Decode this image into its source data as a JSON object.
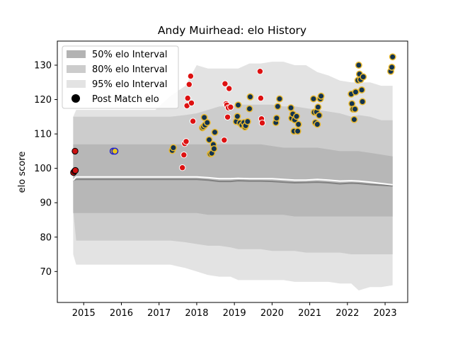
{
  "chart_data": {
    "type": "scatter",
    "title": "Andy Muirhead: elo History",
    "xlabel": "",
    "ylabel": "elo score",
    "xlim": [
      2014.3,
      2023.6
    ],
    "ylim": [
      61,
      137
    ],
    "x_ticks": [
      2015,
      2016,
      2017,
      2018,
      2019,
      2020,
      2021,
      2022,
      2023
    ],
    "y_ticks": [
      70,
      80,
      90,
      100,
      110,
      120,
      130
    ],
    "legend": {
      "position": "top-left",
      "entries": [
        "50% elo Interval",
        "80% elo Interval",
        "95% elo Interval",
        "Post Match elo"
      ]
    },
    "colors": {
      "band95": "#e3e3e3",
      "band80": "#cccccc",
      "band50": "#b7b7b7",
      "median_line": "#808080",
      "mean_line": "#ffffff",
      "win_marker": "#dd1111",
      "other_marker": "#123350",
      "other_marker_edge": "#e8b82e",
      "start_marker": "#cc1111",
      "highlight_marker": "#e8c81a",
      "highlight_marker_edge": "#2222cc"
    },
    "bands": {
      "x": [
        2014.72,
        2014.8,
        2015.8,
        2016.9,
        2017.3,
        2017.7,
        2018.0,
        2018.3,
        2018.6,
        2018.9,
        2019.1,
        2019.4,
        2019.7,
        2020.0,
        2020.3,
        2020.6,
        2020.9,
        2021.2,
        2021.5,
        2021.8,
        2022.1,
        2022.3,
        2022.6,
        2022.9,
        2023.2
      ],
      "p95_lo": [
        75.0,
        72.0,
        72.0,
        72.0,
        72.0,
        71.0,
        70.0,
        69.0,
        68.5,
        68.5,
        67.5,
        67.5,
        67.5,
        67.5,
        67.5,
        67.0,
        67.0,
        67.0,
        67.0,
        66.5,
        66.5,
        64.5,
        65.5,
        65.5,
        66.0
      ],
      "p80_lo": [
        88.0,
        79.0,
        79.0,
        79.0,
        79.0,
        78.5,
        78.0,
        77.5,
        77.5,
        77.0,
        76.5,
        76.5,
        76.5,
        76.0,
        76.0,
        76.0,
        75.5,
        75.5,
        75.5,
        75.5,
        75.0,
        75.0,
        75.0,
        75.0,
        75.0
      ],
      "p50_lo": [
        87.0,
        87.0,
        87.0,
        87.0,
        87.0,
        87.0,
        87.0,
        86.5,
        86.5,
        86.5,
        86.5,
        86.5,
        86.5,
        86.5,
        86.5,
        86.0,
        86.0,
        86.0,
        86.0,
        86.0,
        86.0,
        86.0,
        86.0,
        86.0,
        86.0
      ],
      "p50_hi": [
        107.0,
        107.0,
        107.0,
        107.0,
        107.0,
        107.0,
        107.0,
        107.0,
        107.0,
        107.0,
        107.0,
        107.0,
        107.0,
        106.5,
        106.0,
        106.0,
        106.0,
        106.0,
        105.5,
        105.0,
        105.0,
        105.0,
        104.5,
        104.0,
        103.5
      ],
      "p80_hi": [
        115.0,
        115.0,
        115.0,
        115.0,
        115.0,
        115.5,
        116.0,
        117.0,
        118.0,
        118.0,
        118.5,
        118.5,
        118.5,
        118.5,
        118.0,
        118.0,
        117.5,
        117.0,
        116.5,
        116.0,
        115.0,
        115.5,
        115.0,
        114.0,
        114.0
      ],
      "p95_hi": [
        115.0,
        117.0,
        117.0,
        117.0,
        121.0,
        124.0,
        130.0,
        129.0,
        129.0,
        129.0,
        129.0,
        130.5,
        130.5,
        131.0,
        131.0,
        130.0,
        130.0,
        128.0,
        127.0,
        125.5,
        125.0,
        125.0,
        125.0,
        124.0,
        124.0
      ],
      "median": [
        96.5,
        96.8,
        96.8,
        96.8,
        96.8,
        96.8,
        96.8,
        96.6,
        96.2,
        96.2,
        96.4,
        96.3,
        96.3,
        96.2,
        96.0,
        95.8,
        95.9,
        96.0,
        95.8,
        95.5,
        95.7,
        95.6,
        95.3,
        95.1,
        94.9
      ],
      "mean": [
        96.5,
        97.5,
        97.5,
        97.5,
        97.5,
        97.5,
        97.5,
        97.3,
        97.0,
        97.0,
        97.1,
        97.0,
        97.0,
        97.0,
        96.8,
        96.6,
        96.6,
        96.8,
        96.6,
        96.3,
        96.4,
        96.3,
        96.0,
        95.6,
        95.2
      ]
    },
    "series": [
      {
        "name": "Post Match elo",
        "style": "start",
        "points": [
          [
            2014.73,
            98.8
          ],
          [
            2014.76,
            99.2
          ],
          [
            2014.78,
            99.4
          ],
          [
            2014.77,
            105.0
          ]
        ]
      },
      {
        "style": "highlight",
        "points": [
          [
            2015.78,
            105.0
          ],
          [
            2015.83,
            105.0
          ]
        ]
      },
      {
        "style": "win",
        "points": [
          [
            2017.62,
            100.2
          ],
          [
            2017.66,
            103.9
          ],
          [
            2017.68,
            107.2
          ],
          [
            2017.72,
            107.8
          ],
          [
            2017.74,
            118.2
          ],
          [
            2017.76,
            120.4
          ],
          [
            2017.8,
            124.4
          ],
          [
            2017.84,
            126.8
          ],
          [
            2017.86,
            119.0
          ],
          [
            2017.9,
            113.7
          ],
          [
            2018.73,
            108.2
          ],
          [
            2018.75,
            124.6
          ],
          [
            2018.78,
            118.8
          ],
          [
            2018.8,
            118.4
          ],
          [
            2018.82,
            114.9
          ],
          [
            2018.84,
            117.6
          ],
          [
            2018.86,
            123.2
          ],
          [
            2018.9,
            117.8
          ],
          [
            2019.68,
            128.2
          ],
          [
            2019.7,
            120.4
          ],
          [
            2019.72,
            114.4
          ],
          [
            2019.74,
            113.2
          ]
        ]
      },
      {
        "style": "other",
        "points": [
          [
            2017.35,
            105.2
          ],
          [
            2017.38,
            106.0
          ],
          [
            2018.15,
            111.8
          ],
          [
            2018.18,
            112.1
          ],
          [
            2018.2,
            114.8
          ],
          [
            2018.22,
            112.6
          ],
          [
            2018.28,
            113.3
          ],
          [
            2018.33,
            108.3
          ],
          [
            2018.36,
            104.2
          ],
          [
            2018.4,
            104.4
          ],
          [
            2018.44,
            106.9
          ],
          [
            2018.46,
            105.7
          ],
          [
            2018.48,
            110.5
          ],
          [
            2019.05,
            113.6
          ],
          [
            2019.08,
            115.1
          ],
          [
            2019.1,
            118.4
          ],
          [
            2019.15,
            113.2
          ],
          [
            2019.2,
            112.6
          ],
          [
            2019.25,
            113.3
          ],
          [
            2019.28,
            112.0
          ],
          [
            2019.3,
            112.4
          ],
          [
            2019.35,
            113.6
          ],
          [
            2019.4,
            117.3
          ],
          [
            2019.42,
            120.8
          ],
          [
            2020.1,
            113.3
          ],
          [
            2020.12,
            114.6
          ],
          [
            2020.15,
            118.0
          ],
          [
            2020.2,
            120.2
          ],
          [
            2020.5,
            117.6
          ],
          [
            2020.52,
            114.6
          ],
          [
            2020.55,
            115.8
          ],
          [
            2020.58,
            110.8
          ],
          [
            2020.6,
            114.1
          ],
          [
            2020.65,
            115.1
          ],
          [
            2020.68,
            110.8
          ],
          [
            2020.7,
            112.8
          ],
          [
            2021.1,
            120.2
          ],
          [
            2021.12,
            116.3
          ],
          [
            2021.15,
            113.3
          ],
          [
            2021.18,
            116.4
          ],
          [
            2021.2,
            112.8
          ],
          [
            2021.22,
            117.8
          ],
          [
            2021.25,
            115.4
          ],
          [
            2021.28,
            120.2
          ],
          [
            2021.3,
            121.0
          ],
          [
            2022.1,
            121.6
          ],
          [
            2022.12,
            118.8
          ],
          [
            2022.15,
            117.2
          ],
          [
            2022.18,
            114.2
          ],
          [
            2022.2,
            117.2
          ],
          [
            2022.22,
            122.2
          ],
          [
            2022.28,
            125.6
          ],
          [
            2022.3,
            130.0
          ],
          [
            2022.32,
            127.4
          ],
          [
            2022.35,
            125.8
          ],
          [
            2022.38,
            122.8
          ],
          [
            2022.4,
            119.4
          ],
          [
            2022.42,
            126.6
          ],
          [
            2023.15,
            128.2
          ],
          [
            2023.18,
            129.4
          ],
          [
            2023.2,
            132.4
          ]
        ]
      }
    ]
  }
}
